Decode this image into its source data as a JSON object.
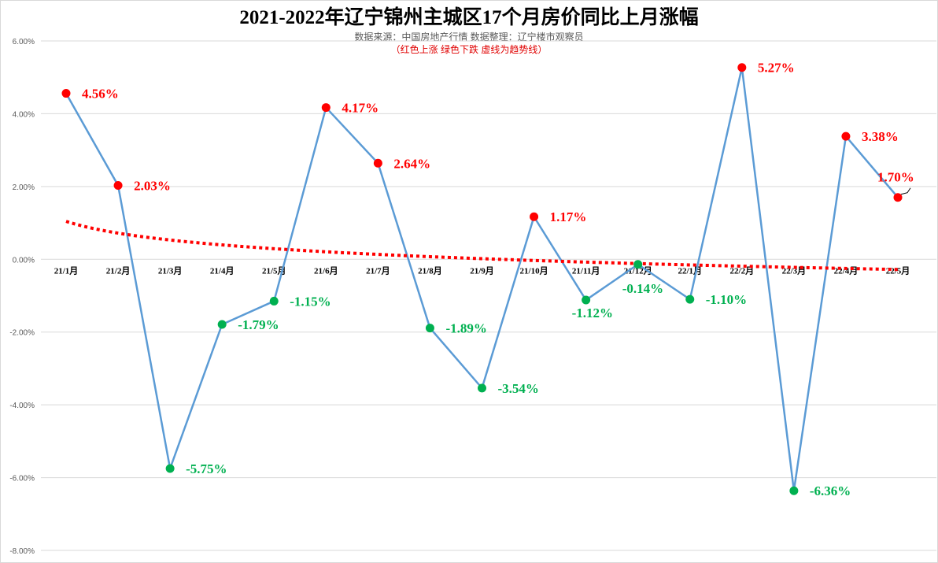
{
  "chart_data": {
    "type": "line",
    "title": "2021-2022年辽宁锦州主城区17个月房价同比上月涨幅",
    "subtitle": "数据来源：中国房地产行情 数据整理：辽宁楼市观察员",
    "note": "（红色上涨  绿色下跌   虚线为趋势线）",
    "categories": [
      "21/1月",
      "21/2月",
      "21/3月",
      "21/4月",
      "21/5月",
      "21/6月",
      "21/7月",
      "21/8月",
      "21/9月",
      "21/10月",
      "21/11月",
      "21/12月",
      "22/1月",
      "22/2月",
      "22/3月",
      "22/4月",
      "22/5月"
    ],
    "values": [
      4.56,
      2.03,
      -5.75,
      -1.79,
      -1.15,
      4.17,
      2.64,
      -1.89,
      -3.54,
      1.17,
      -1.12,
      -0.14,
      -1.1,
      5.27,
      -6.36,
      3.38,
      1.7
    ],
    "unit": "%",
    "ylim": [
      -8,
      6
    ],
    "yticks": [
      "6.00%",
      "4.00%",
      "2.00%",
      "0.00%",
      "-2.00%",
      "-4.00%",
      "-6.00%",
      "-8.00%"
    ],
    "grid": true,
    "trendline": "logarithmic",
    "colors": {
      "line": "#5b9bd5",
      "up": "#ff0000",
      "down": "#00b050",
      "trend": "#ff0000",
      "grid": "#d9d9d9"
    }
  }
}
